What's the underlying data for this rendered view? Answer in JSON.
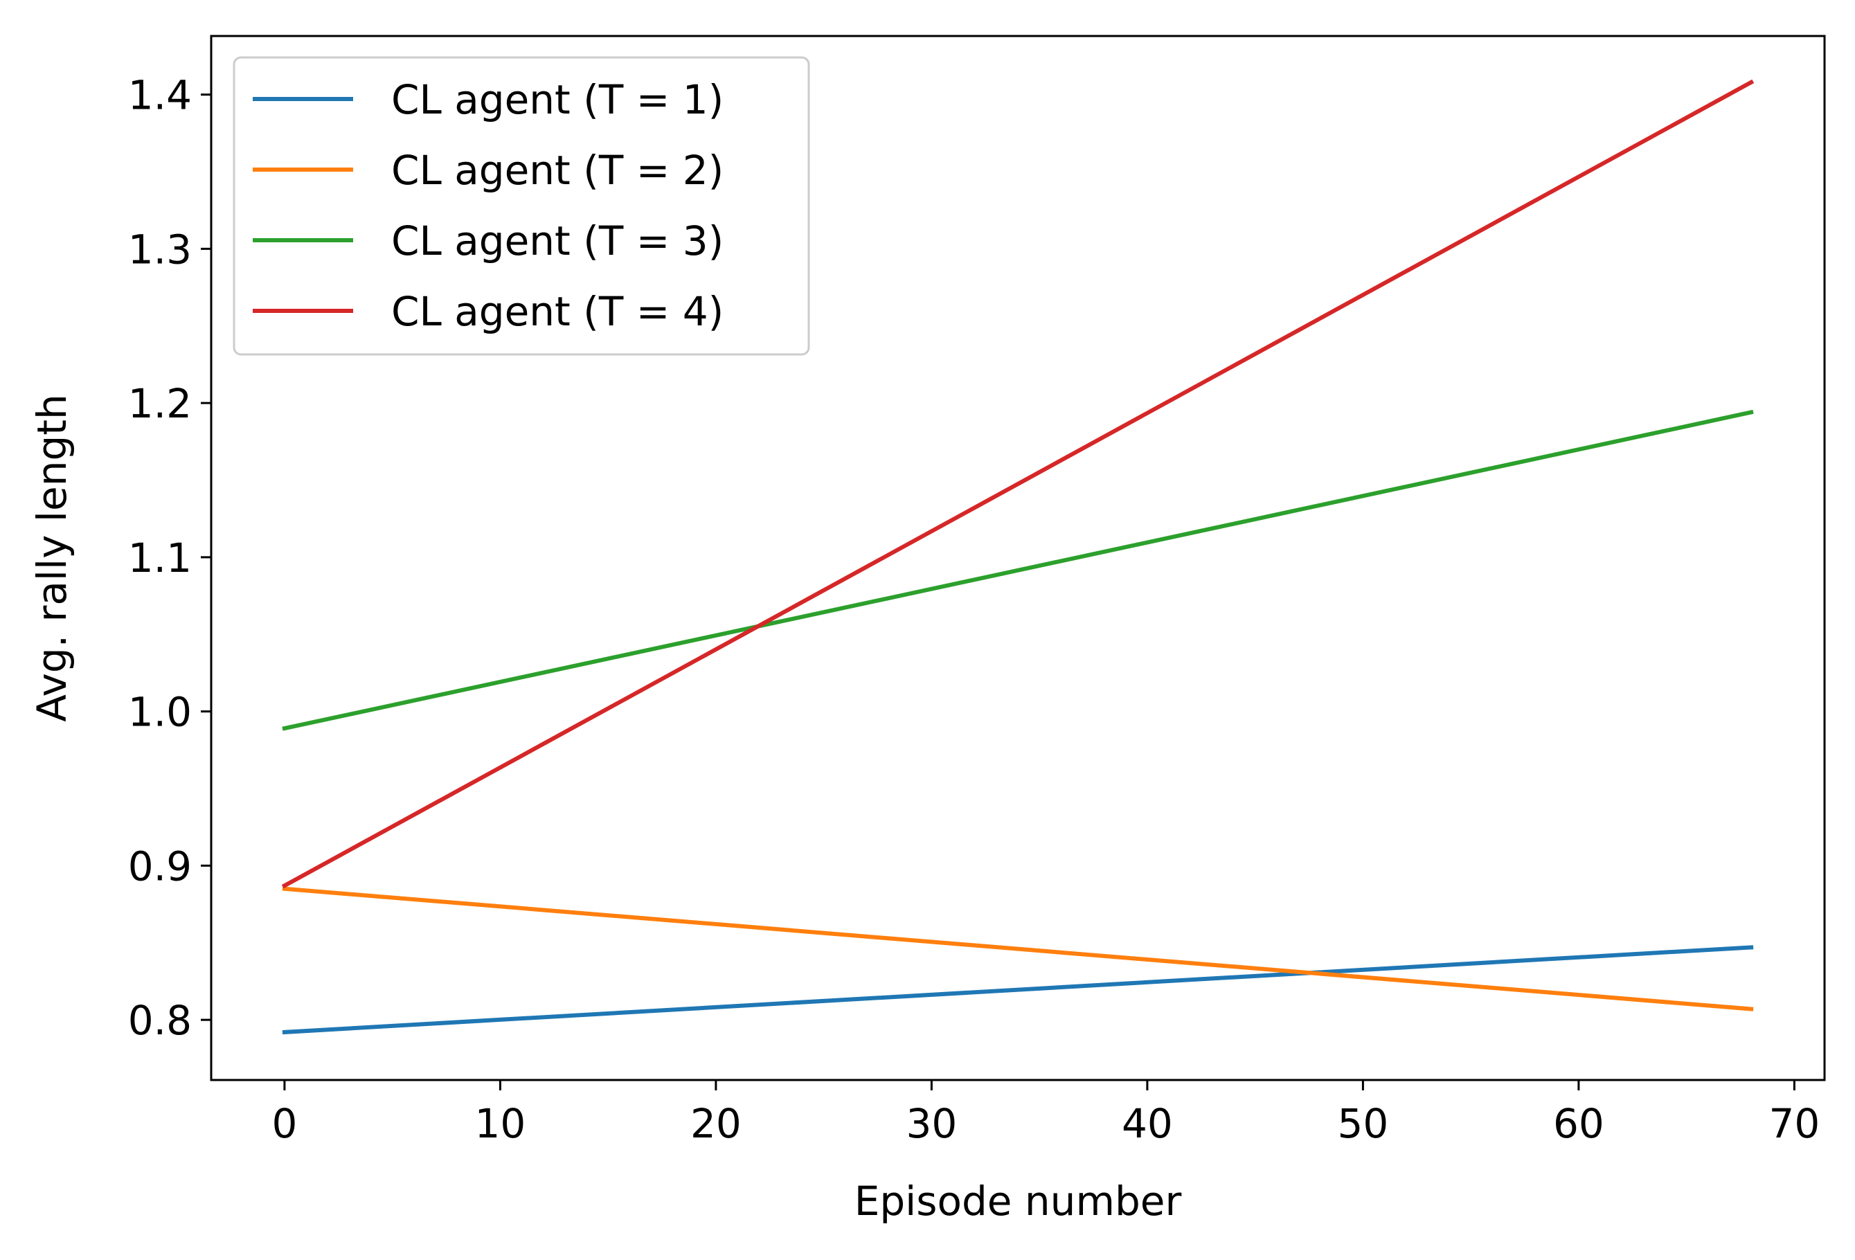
{
  "chart_data": {
    "type": "line",
    "title": "",
    "xlabel": "Episode number",
    "ylabel": "Avg. rally length",
    "xlim": [
      -3.4,
      71.4
    ],
    "ylim": [
      0.761,
      1.438
    ],
    "xticks": [
      0,
      10,
      20,
      30,
      40,
      50,
      60,
      70
    ],
    "xtick_labels": [
      "0",
      "10",
      "20",
      "30",
      "40",
      "50",
      "60",
      "70"
    ],
    "yticks": [
      0.8,
      0.9,
      1.0,
      1.1,
      1.2,
      1.3,
      1.4
    ],
    "ytick_labels": [
      "0.8",
      "0.9",
      "1.0",
      "1.1",
      "1.2",
      "1.3",
      "1.4"
    ],
    "grid": false,
    "legend_position": "top-left",
    "series": [
      {
        "name": "CL agent (T = 1)",
        "color": "#1f77b4",
        "x": [
          0,
          68
        ],
        "y": [
          0.792,
          0.847
        ]
      },
      {
        "name": "CL agent (T = 2)",
        "color": "#ff7f0e",
        "x": [
          0,
          68
        ],
        "y": [
          0.885,
          0.807
        ]
      },
      {
        "name": "CL agent (T = 3)",
        "color": "#2ca02c",
        "x": [
          0,
          68
        ],
        "y": [
          0.989,
          1.194
        ]
      },
      {
        "name": "CL agent (T = 4)",
        "color": "#d62728",
        "x": [
          0,
          68
        ],
        "y": [
          0.887,
          1.408
        ]
      }
    ]
  }
}
